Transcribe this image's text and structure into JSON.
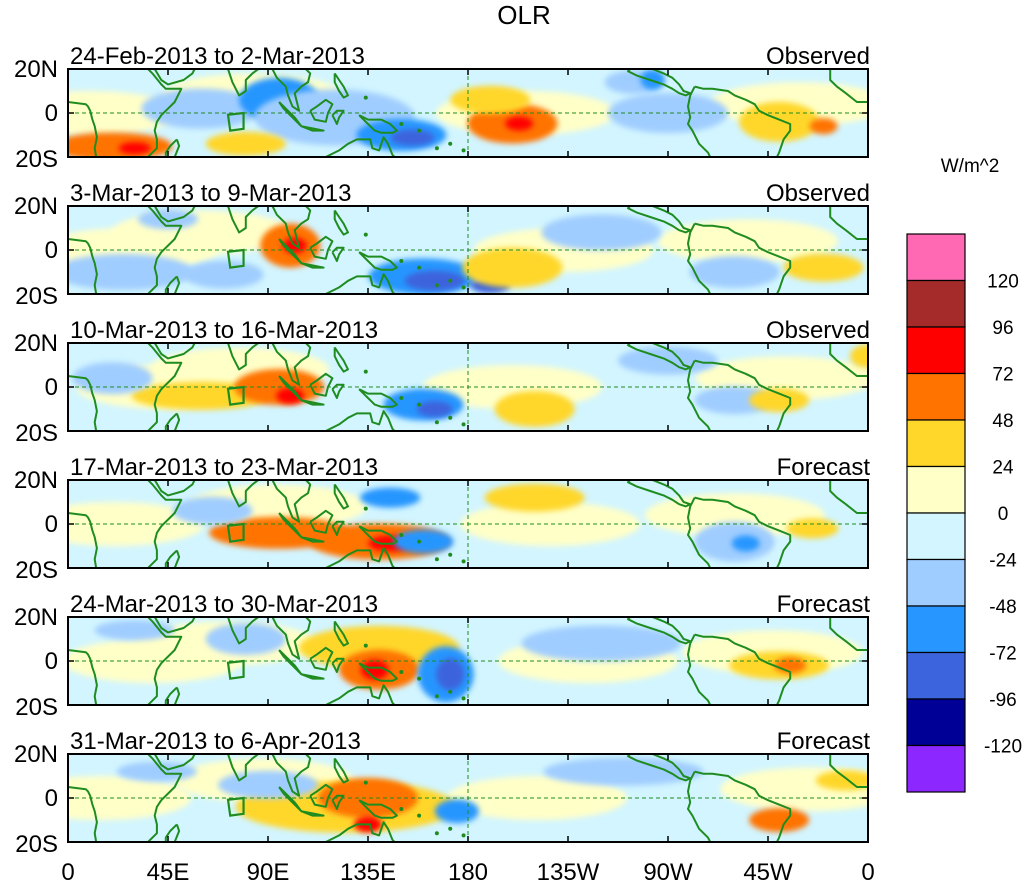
{
  "title": "OLR",
  "unit_label": "W/m^2",
  "lat_labels": [
    "20N",
    "0",
    "20S"
  ],
  "lon_labels": [
    "0",
    "45E",
    "90E",
    "135E",
    "180",
    "135W",
    "90W",
    "45W",
    "0"
  ],
  "panels": [
    {
      "period": "24-Feb-2013 to 2-Mar-2013",
      "kind": "Observed"
    },
    {
      "period": "3-Mar-2013 to 9-Mar-2013",
      "kind": "Observed"
    },
    {
      "period": "10-Mar-2013 to 16-Mar-2013",
      "kind": "Observed"
    },
    {
      "period": "17-Mar-2013 to 23-Mar-2013",
      "kind": "Forecast"
    },
    {
      "period": "24-Mar-2013 to 30-Mar-2013",
      "kind": "Forecast"
    },
    {
      "period": "31-Mar-2013 to 6-Apr-2013",
      "kind": "Forecast"
    }
  ],
  "colorbar": {
    "colors": [
      "#ff69b4",
      "#a52a2a",
      "#ff0000",
      "#ff7300",
      "#ffd72a",
      "#ffffc8",
      "#d2f5ff",
      "#a0cdff",
      "#2896ff",
      "#3c64dc",
      "#000096",
      "#8c28ff"
    ],
    "labels": [
      "120",
      "96",
      "72",
      "48",
      "24",
      "0",
      "-24",
      "-48",
      "-72",
      "-96",
      "-120"
    ]
  },
  "colors": {
    "coast": "#1f8c1f",
    "positive_weak": "#ffffc8",
    "negative_weak": "#d2f5ff"
  }
}
